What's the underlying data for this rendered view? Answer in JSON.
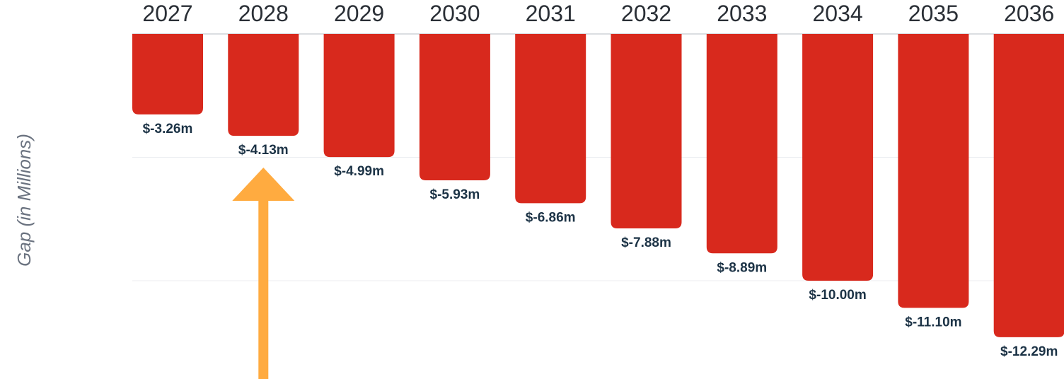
{
  "chart_data": {
    "type": "bar",
    "ylabel": "Gap (in Millions)",
    "categories": [
      "2027",
      "2028",
      "2029",
      "2030",
      "2031",
      "2032",
      "2033",
      "2034",
      "2035",
      "2036"
    ],
    "values": [
      -3.26,
      -4.13,
      -4.99,
      -5.93,
      -6.86,
      -7.88,
      -8.89,
      -10.0,
      -11.1,
      -12.29
    ],
    "value_labels": [
      "$-3.26m",
      "$-4.13m",
      "$-4.99m",
      "$-5.93m",
      "$-6.86m",
      "$-7.88m",
      "$-8.89m",
      "$-10.00m",
      "$-11.10m",
      "$-12.29m"
    ],
    "ylim": [
      -14,
      0
    ],
    "grid": true,
    "bar_color": "#d8291d",
    "arrow_color": "#ffab40",
    "arrow_points_to": "2028"
  }
}
